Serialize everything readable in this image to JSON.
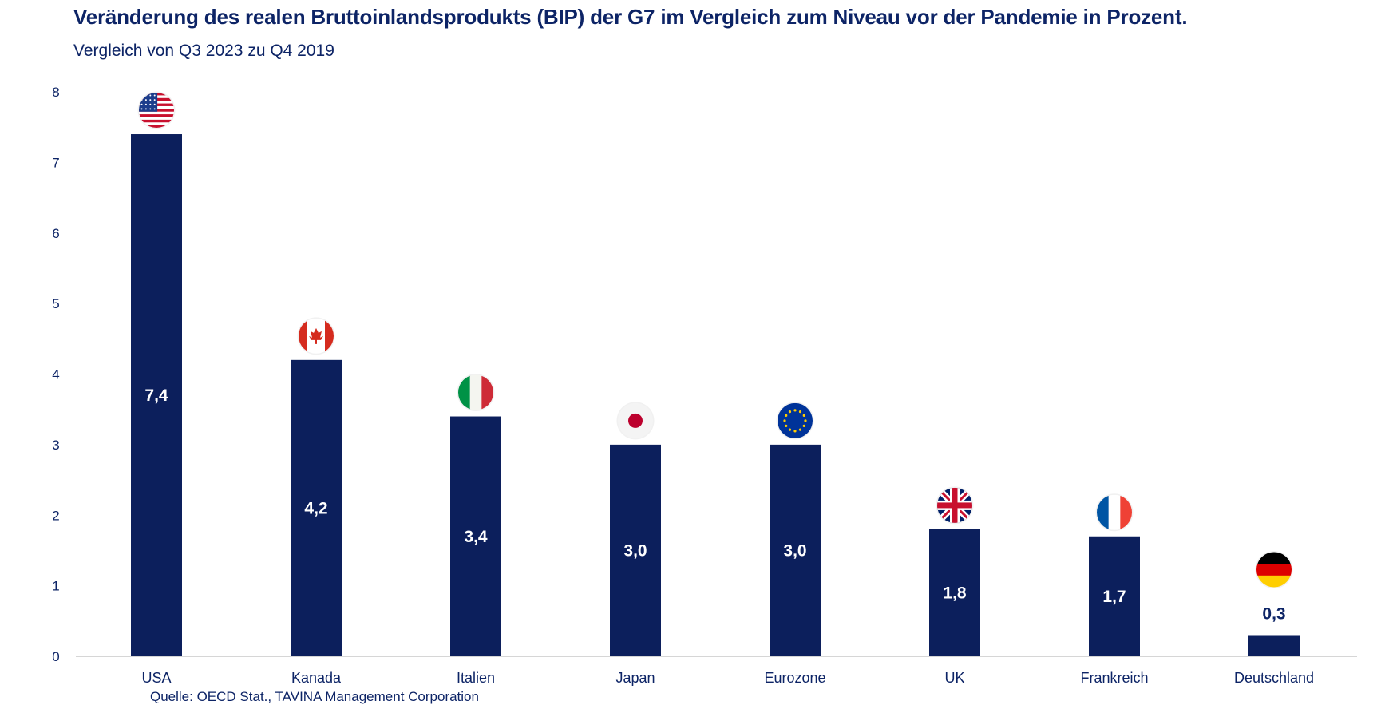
{
  "title": "Veränderung des realen Bruttoinlandsprodukts (BIP) der G7 im Vergleich zum Niveau vor der Pandemie in Prozent.",
  "subtitle": "Vergleich von Q3 2023 zu Q4 2019",
  "source": "Quelle: OECD Stat., TAVINA Management Corporation",
  "colors": {
    "bar": "#0c1f5c",
    "text": "#0d2466",
    "axis": "#c8c8c8"
  },
  "chart_data": {
    "type": "bar",
    "categories": [
      "USA",
      "Kanada",
      "Italien",
      "Japan",
      "Eurozone",
      "UK",
      "Frankreich",
      "Deutschland"
    ],
    "values": [
      7.4,
      4.2,
      3.4,
      3.0,
      3.0,
      1.8,
      1.7,
      0.3
    ],
    "value_labels": [
      "7,4",
      "4,2",
      "3,4",
      "3,0",
      "3,0",
      "1,8",
      "1,7",
      "0,3"
    ],
    "flag_icons": [
      "us-flag-icon",
      "canada-flag-icon",
      "italy-flag-icon",
      "japan-flag-icon",
      "eu-flag-icon",
      "uk-flag-icon",
      "france-flag-icon",
      "germany-flag-icon"
    ],
    "yticks": [
      "0",
      "1",
      "2",
      "3",
      "4",
      "5",
      "6",
      "7",
      "8"
    ],
    "ylim": [
      0,
      8
    ],
    "grid": false,
    "legend": "none"
  }
}
